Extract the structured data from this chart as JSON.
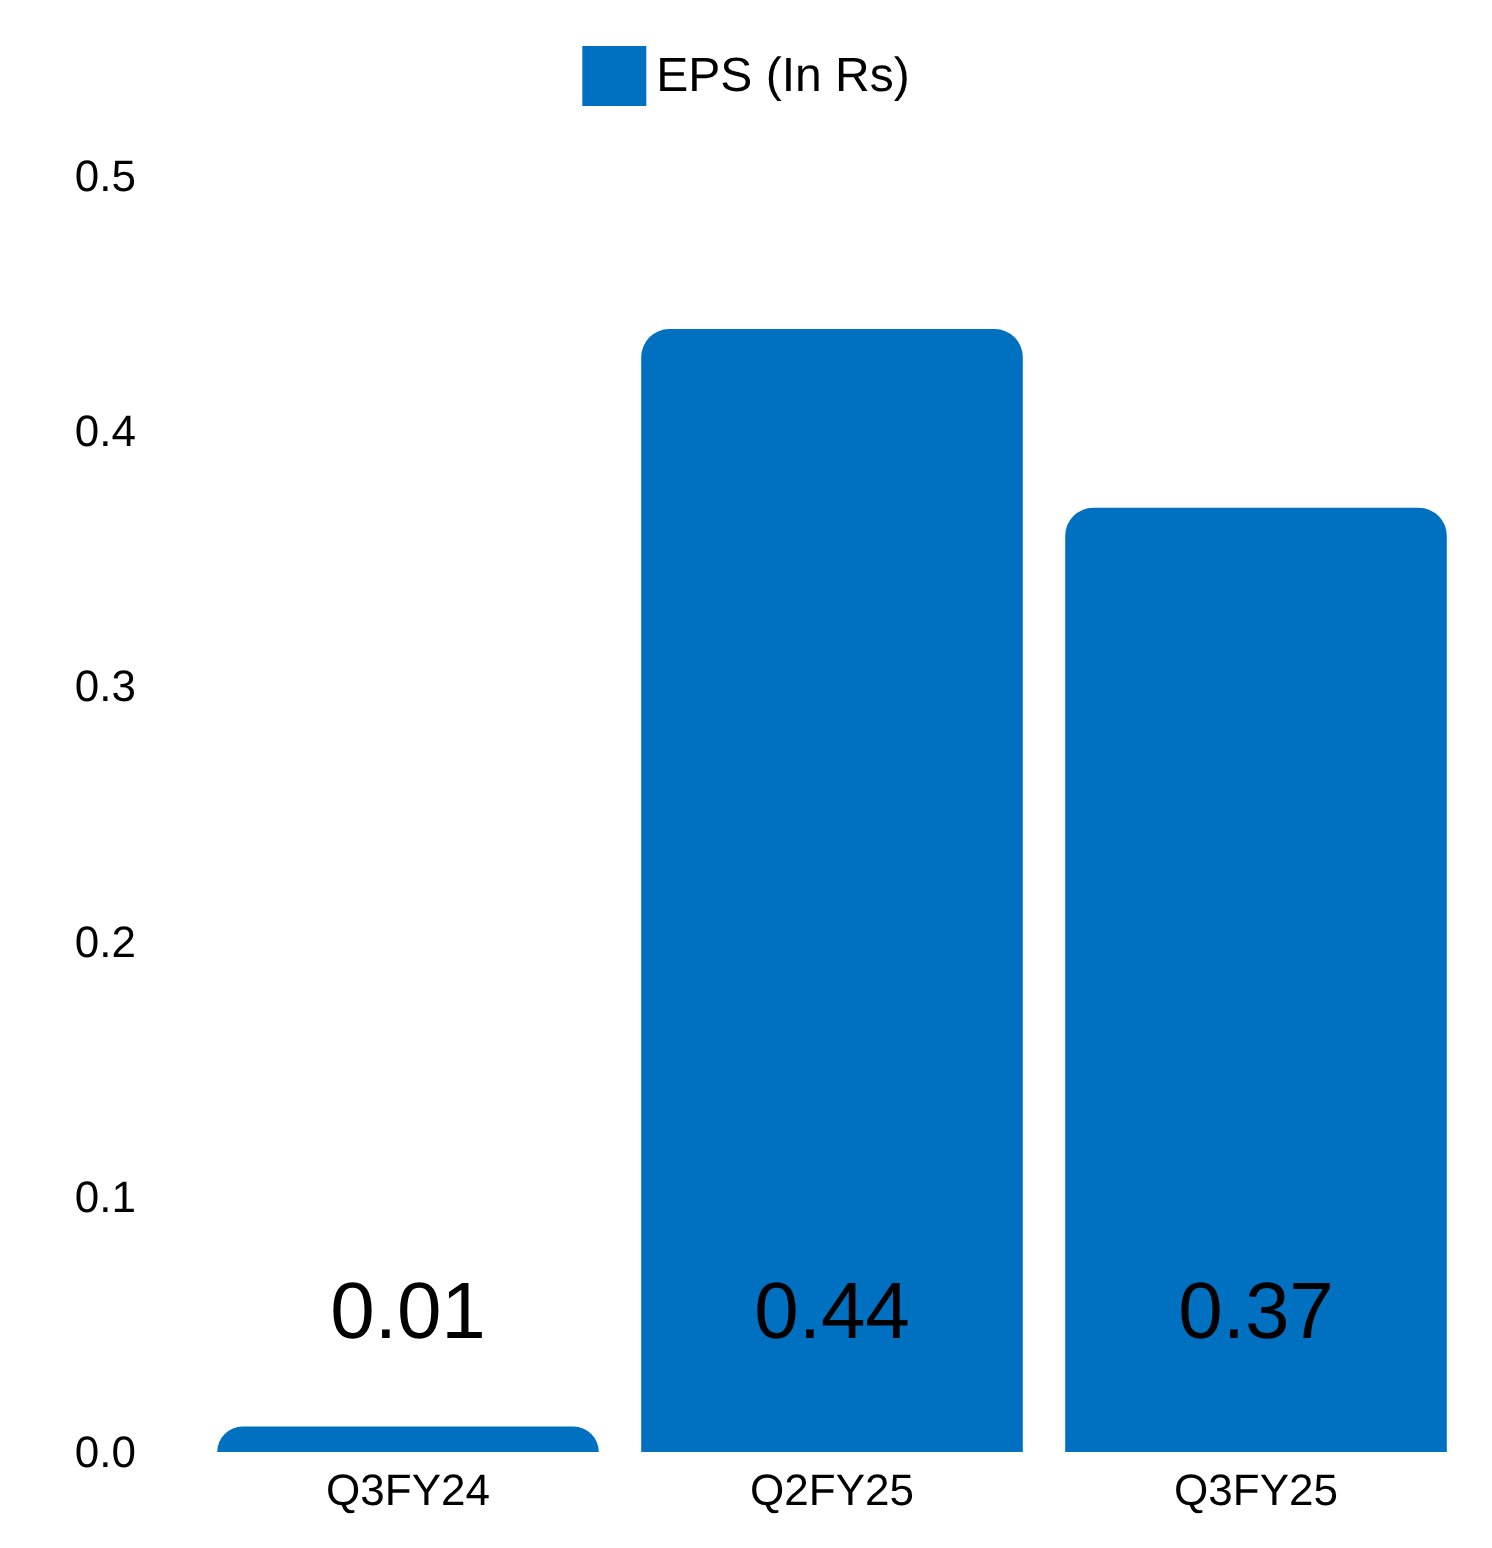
{
  "chart_data": {
    "type": "bar",
    "categories": [
      "Q3FY24",
      "Q2FY25",
      "Q3FY25"
    ],
    "series": [
      {
        "name": "EPS (In Rs)",
        "color": "#0070c0",
        "values": [
          0.01,
          0.44,
          0.37
        ]
      }
    ],
    "ylim": [
      0,
      0.5
    ],
    "yticks": [
      {
        "value": 0,
        "label": "0.0"
      },
      0.1,
      0.2,
      0.3,
      0.4,
      0.5
    ],
    "grid": false,
    "legend": "top",
    "data_labels": true
  }
}
